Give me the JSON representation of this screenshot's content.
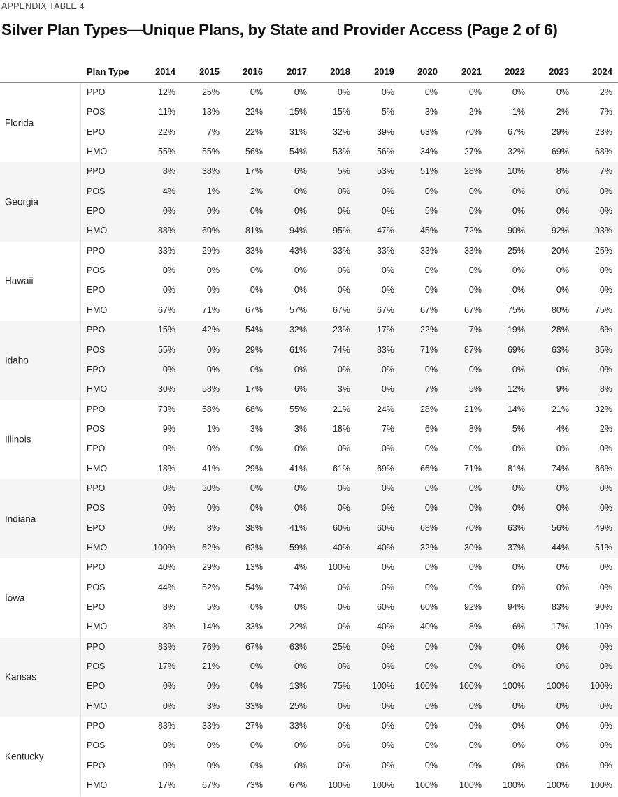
{
  "appendix_label": "APPENDIX TABLE 4",
  "title": "Silver Plan Types—Unique Plans, by State and Provider Access (Page 2 of 6)",
  "table": {
    "headers": [
      "Plan Type",
      "2014",
      "2015",
      "2016",
      "2017",
      "2018",
      "2019",
      "2020",
      "2021",
      "2022",
      "2023",
      "2024"
    ],
    "groups": [
      {
        "state": "Florida",
        "rows": [
          {
            "type": "PPO",
            "values": [
              "12%",
              "25%",
              "0%",
              "0%",
              "0%",
              "0%",
              "0%",
              "0%",
              "0%",
              "0%",
              "2%"
            ]
          },
          {
            "type": "POS",
            "values": [
              "11%",
              "13%",
              "22%",
              "15%",
              "15%",
              "5%",
              "3%",
              "2%",
              "1%",
              "2%",
              "7%"
            ]
          },
          {
            "type": "EPO",
            "values": [
              "22%",
              "7%",
              "22%",
              "31%",
              "32%",
              "39%",
              "63%",
              "70%",
              "67%",
              "29%",
              "23%"
            ]
          },
          {
            "type": "HMO",
            "values": [
              "55%",
              "55%",
              "56%",
              "54%",
              "53%",
              "56%",
              "34%",
              "27%",
              "32%",
              "69%",
              "68%"
            ]
          }
        ]
      },
      {
        "state": "Georgia",
        "rows": [
          {
            "type": "PPO",
            "values": [
              "8%",
              "38%",
              "17%",
              "6%",
              "5%",
              "53%",
              "51%",
              "28%",
              "10%",
              "8%",
              "7%"
            ]
          },
          {
            "type": "POS",
            "values": [
              "4%",
              "1%",
              "2%",
              "0%",
              "0%",
              "0%",
              "0%",
              "0%",
              "0%",
              "0%",
              "0%"
            ]
          },
          {
            "type": "EPO",
            "values": [
              "0%",
              "0%",
              "0%",
              "0%",
              "0%",
              "0%",
              "5%",
              "0%",
              "0%",
              "0%",
              "0%"
            ]
          },
          {
            "type": "HMO",
            "values": [
              "88%",
              "60%",
              "81%",
              "94%",
              "95%",
              "47%",
              "45%",
              "72%",
              "90%",
              "92%",
              "93%"
            ]
          }
        ]
      },
      {
        "state": "Hawaii",
        "rows": [
          {
            "type": "PPO",
            "values": [
              "33%",
              "29%",
              "33%",
              "43%",
              "33%",
              "33%",
              "33%",
              "33%",
              "25%",
              "20%",
              "25%"
            ]
          },
          {
            "type": "POS",
            "values": [
              "0%",
              "0%",
              "0%",
              "0%",
              "0%",
              "0%",
              "0%",
              "0%",
              "0%",
              "0%",
              "0%"
            ]
          },
          {
            "type": "EPO",
            "values": [
              "0%",
              "0%",
              "0%",
              "0%",
              "0%",
              "0%",
              "0%",
              "0%",
              "0%",
              "0%",
              "0%"
            ]
          },
          {
            "type": "HMO",
            "values": [
              "67%",
              "71%",
              "67%",
              "57%",
              "67%",
              "67%",
              "67%",
              "67%",
              "75%",
              "80%",
              "75%"
            ]
          }
        ]
      },
      {
        "state": "Idaho",
        "rows": [
          {
            "type": "PPO",
            "values": [
              "15%",
              "42%",
              "54%",
              "32%",
              "23%",
              "17%",
              "22%",
              "7%",
              "19%",
              "28%",
              "6%"
            ]
          },
          {
            "type": "POS",
            "values": [
              "55%",
              "0%",
              "29%",
              "61%",
              "74%",
              "83%",
              "71%",
              "87%",
              "69%",
              "63%",
              "85%"
            ]
          },
          {
            "type": "EPO",
            "values": [
              "0%",
              "0%",
              "0%",
              "0%",
              "0%",
              "0%",
              "0%",
              "0%",
              "0%",
              "0%",
              "0%"
            ]
          },
          {
            "type": "HMO",
            "values": [
              "30%",
              "58%",
              "17%",
              "6%",
              "3%",
              "0%",
              "7%",
              "5%",
              "12%",
              "9%",
              "8%"
            ]
          }
        ]
      },
      {
        "state": "Illinois",
        "rows": [
          {
            "type": "PPO",
            "values": [
              "73%",
              "58%",
              "68%",
              "55%",
              "21%",
              "24%",
              "28%",
              "21%",
              "14%",
              "21%",
              "32%"
            ]
          },
          {
            "type": "POS",
            "values": [
              "9%",
              "1%",
              "3%",
              "3%",
              "18%",
              "7%",
              "6%",
              "8%",
              "5%",
              "4%",
              "2%"
            ]
          },
          {
            "type": "EPO",
            "values": [
              "0%",
              "0%",
              "0%",
              "0%",
              "0%",
              "0%",
              "0%",
              "0%",
              "0%",
              "0%",
              "0%"
            ]
          },
          {
            "type": "HMO",
            "values": [
              "18%",
              "41%",
              "29%",
              "41%",
              "61%",
              "69%",
              "66%",
              "71%",
              "81%",
              "74%",
              "66%"
            ]
          }
        ]
      },
      {
        "state": "Indiana",
        "rows": [
          {
            "type": "PPO",
            "values": [
              "0%",
              "30%",
              "0%",
              "0%",
              "0%",
              "0%",
              "0%",
              "0%",
              "0%",
              "0%",
              "0%"
            ]
          },
          {
            "type": "POS",
            "values": [
              "0%",
              "0%",
              "0%",
              "0%",
              "0%",
              "0%",
              "0%",
              "0%",
              "0%",
              "0%",
              "0%"
            ]
          },
          {
            "type": "EPO",
            "values": [
              "0%",
              "8%",
              "38%",
              "41%",
              "60%",
              "60%",
              "68%",
              "70%",
              "63%",
              "56%",
              "49%"
            ]
          },
          {
            "type": "HMO",
            "values": [
              "100%",
              "62%",
              "62%",
              "59%",
              "40%",
              "40%",
              "32%",
              "30%",
              "37%",
              "44%",
              "51%"
            ]
          }
        ]
      },
      {
        "state": "Iowa",
        "rows": [
          {
            "type": "PPO",
            "values": [
              "40%",
              "29%",
              "13%",
              "4%",
              "100%",
              "0%",
              "0%",
              "0%",
              "0%",
              "0%",
              "0%"
            ]
          },
          {
            "type": "POS",
            "values": [
              "44%",
              "52%",
              "54%",
              "74%",
              "0%",
              "0%",
              "0%",
              "0%",
              "0%",
              "0%",
              "0%"
            ]
          },
          {
            "type": "EPO",
            "values": [
              "8%",
              "5%",
              "0%",
              "0%",
              "0%",
              "60%",
              "60%",
              "92%",
              "94%",
              "83%",
              "90%"
            ]
          },
          {
            "type": "HMO",
            "values": [
              "8%",
              "14%",
              "33%",
              "22%",
              "0%",
              "40%",
              "40%",
              "8%",
              "6%",
              "17%",
              "10%"
            ]
          }
        ]
      },
      {
        "state": "Kansas",
        "rows": [
          {
            "type": "PPO",
            "values": [
              "83%",
              "76%",
              "67%",
              "63%",
              "25%",
              "0%",
              "0%",
              "0%",
              "0%",
              "0%",
              "0%"
            ]
          },
          {
            "type": "POS",
            "values": [
              "17%",
              "21%",
              "0%",
              "0%",
              "0%",
              "0%",
              "0%",
              "0%",
              "0%",
              "0%",
              "0%"
            ]
          },
          {
            "type": "EPO",
            "values": [
              "0%",
              "0%",
              "0%",
              "13%",
              "75%",
              "100%",
              "100%",
              "100%",
              "100%",
              "100%",
              "100%"
            ]
          },
          {
            "type": "HMO",
            "values": [
              "0%",
              "3%",
              "33%",
              "25%",
              "0%",
              "0%",
              "0%",
              "0%",
              "0%",
              "0%",
              "0%"
            ]
          }
        ]
      },
      {
        "state": "Kentucky",
        "rows": [
          {
            "type": "PPO",
            "values": [
              "83%",
              "33%",
              "27%",
              "33%",
              "0%",
              "0%",
              "0%",
              "0%",
              "0%",
              "0%",
              "0%"
            ]
          },
          {
            "type": "POS",
            "values": [
              "0%",
              "0%",
              "0%",
              "0%",
              "0%",
              "0%",
              "0%",
              "0%",
              "0%",
              "0%",
              "0%"
            ]
          },
          {
            "type": "EPO",
            "values": [
              "0%",
              "0%",
              "0%",
              "0%",
              "0%",
              "0%",
              "0%",
              "0%",
              "0%",
              "0%",
              "0%"
            ]
          },
          {
            "type": "HMO",
            "values": [
              "17%",
              "67%",
              "73%",
              "67%",
              "100%",
              "100%",
              "100%",
              "100%",
              "100%",
              "100%",
              "100%"
            ]
          }
        ]
      }
    ]
  }
}
